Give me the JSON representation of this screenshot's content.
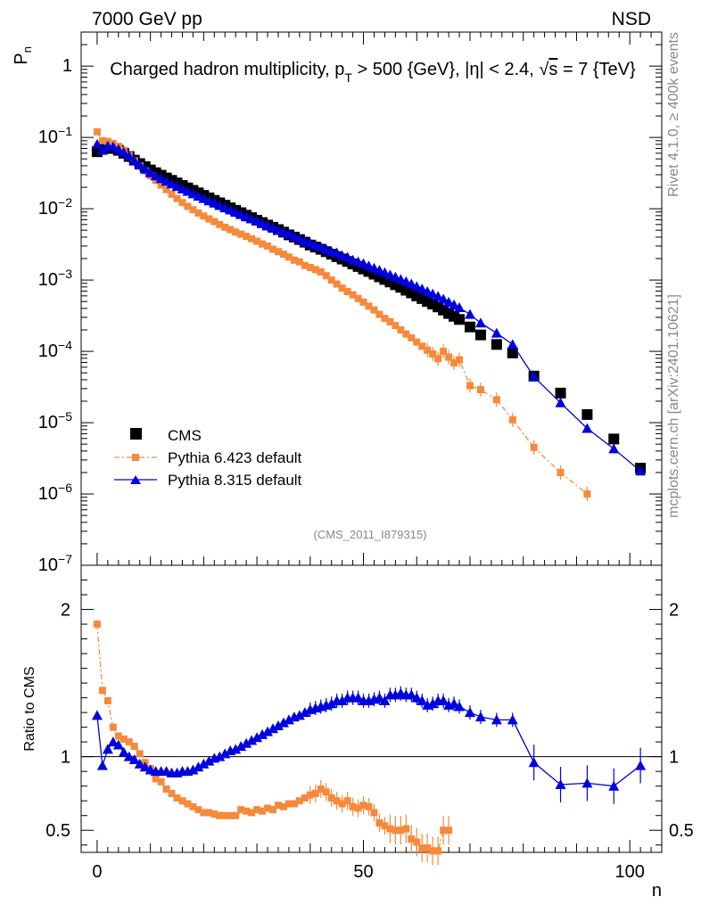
{
  "header": {
    "left": "7000 GeV pp",
    "right": "NSD"
  },
  "side_labels": {
    "rivet": "Rivet 4.1.0, ≥ 400k events",
    "mcplots": "mcplots.cern.ch [arXiv:2401.10621]"
  },
  "analysis_id": "(CMS_2011_I879315)",
  "colors": {
    "cms": "#000000",
    "py6": "#f7893b",
    "py8": "#0000e0"
  },
  "chart_data": [
    {
      "type": "scatter",
      "yscale": "log",
      "title": "Charged hadron multiplicity, p_T > 500 {GeV}, |η| < 2.4, √s = 7 {TeV}",
      "title_parts": {
        "a": "Charged hadron multiplicity, p",
        "sub": "T",
        "b": " > 500 {GeV}, |η| < 2.4, √",
        "c": "s",
        "d": " = 7 {TeV}"
      },
      "xlabel": "n",
      "ylabel": "P",
      "ylabel_sub": "n",
      "xlim": [
        -3,
        106
      ],
      "ylim": [
        1e-07,
        3
      ],
      "yticks": [
        {
          "value": 1,
          "label": "1",
          "exp": ""
        },
        {
          "value": 0.1,
          "label": "10",
          "exp": "−1"
        },
        {
          "value": 0.01,
          "label": "10",
          "exp": "−2"
        },
        {
          "value": 0.001,
          "label": "10",
          "exp": "−3"
        },
        {
          "value": 0.0001,
          "label": "10",
          "exp": "−4"
        },
        {
          "value": 1e-05,
          "label": "10",
          "exp": "−5"
        },
        {
          "value": 1e-06,
          "label": "10",
          "exp": "−6"
        },
        {
          "value": 1e-07,
          "label": "10",
          "exp": "−7"
        }
      ],
      "legend_position": "bottom-left",
      "series": [
        {
          "name": "CMS",
          "x": [
            0,
            1,
            2,
            3,
            4,
            5,
            6,
            7,
            8,
            9,
            10,
            11,
            12,
            13,
            14,
            15,
            16,
            17,
            18,
            19,
            20,
            21,
            22,
            23,
            24,
            25,
            26,
            27,
            28,
            29,
            30,
            31,
            32,
            33,
            34,
            35,
            36,
            37,
            38,
            39,
            40,
            41,
            42,
            43,
            44,
            45,
            46,
            47,
            48,
            49,
            50,
            51,
            52,
            53,
            54,
            55,
            56,
            57,
            58,
            59,
            60,
            61,
            62,
            63,
            64,
            65,
            66,
            67,
            68,
            70,
            72,
            75,
            78,
            82,
            87,
            92,
            97,
            102
          ],
          "y": [
            0.063,
            0.07,
            0.072,
            0.07,
            0.066,
            0.06,
            0.054,
            0.048,
            0.043,
            0.039,
            0.035,
            0.032,
            0.0295,
            0.027,
            0.025,
            0.023,
            0.0212,
            0.0196,
            0.0181,
            0.0167,
            0.0154,
            0.0142,
            0.0131,
            0.0121,
            0.0112,
            0.0103,
            0.0095,
            0.0088,
            0.0081,
            0.0075,
            0.0069,
            0.0064,
            0.0059,
            0.0055,
            0.0051,
            0.0047,
            0.0043,
            0.004,
            0.0037,
            0.0034,
            0.0031,
            0.0029,
            0.0027,
            0.0025,
            0.0023,
            0.00213,
            0.00197,
            0.00182,
            0.00168,
            0.00155,
            0.00143,
            0.00132,
            0.00121,
            0.00111,
            0.00102,
            0.00094,
            0.00086,
            0.00079,
            0.00072,
            0.00066,
            0.0006,
            0.00055,
            0.0005,
            0.00046,
            0.00042,
            0.00038,
            0.00034,
            0.00031,
            0.00028,
            0.00022,
            0.00017,
            0.000125,
            9.5e-05,
            4.5e-05,
            2.6e-05,
            1.3e-05,
            5.9e-06,
            2.3e-06
          ]
        },
        {
          "name": "Pythia 6.423 default",
          "x": [
            0,
            1,
            2,
            3,
            4,
            5,
            6,
            7,
            8,
            9,
            10,
            11,
            12,
            13,
            14,
            15,
            16,
            17,
            18,
            19,
            20,
            21,
            22,
            23,
            24,
            25,
            26,
            27,
            28,
            29,
            30,
            31,
            32,
            33,
            34,
            35,
            36,
            37,
            38,
            39,
            40,
            41,
            42,
            43,
            44,
            45,
            46,
            47,
            48,
            49,
            50,
            51,
            52,
            53,
            54,
            55,
            56,
            57,
            58,
            59,
            60,
            61,
            62,
            63,
            64,
            65,
            66,
            67,
            68,
            70,
            72,
            75,
            78,
            82,
            87,
            92
          ],
          "y": [
            0.12,
            0.09,
            0.088,
            0.082,
            0.075,
            0.066,
            0.056,
            0.047,
            0.04,
            0.034,
            0.029,
            0.025,
            0.0215,
            0.0185,
            0.016,
            0.0139,
            0.0122,
            0.0108,
            0.0097,
            0.0087,
            0.0079,
            0.0072,
            0.0066,
            0.006,
            0.0055,
            0.0051,
            0.0047,
            0.0044,
            0.0041,
            0.0038,
            0.0035,
            0.0032,
            0.003,
            0.0027,
            0.0025,
            0.0023,
            0.0021,
            0.0019,
            0.0018,
            0.0016,
            0.0015,
            0.0014,
            0.0013,
            0.00115,
            0.001,
            0.00088,
            0.00077,
            0.00069,
            0.00062,
            0.00055,
            0.00049,
            0.00043,
            0.00038,
            0.00033,
            0.00029,
            0.00026,
            0.00023,
            0.0002,
            0.000175,
            0.000155,
            0.000135,
            0.000118,
            0.000104,
            9.2e-05,
            7.9e-05,
            0.0001,
            8.3e-05,
            6.9e-05,
            7.6e-05,
            3.3e-05,
            2.9e-05,
            2.1e-05,
            1.1e-05,
            4.5e-06,
            2e-06,
            1e-06
          ]
        },
        {
          "name": "Pythia 8.315 default",
          "x": [
            0,
            1,
            2,
            3,
            4,
            5,
            6,
            7,
            8,
            9,
            10,
            11,
            12,
            13,
            14,
            15,
            16,
            17,
            18,
            19,
            20,
            21,
            22,
            23,
            24,
            25,
            26,
            27,
            28,
            29,
            30,
            31,
            32,
            33,
            34,
            35,
            36,
            37,
            38,
            39,
            40,
            41,
            42,
            43,
            44,
            45,
            46,
            47,
            48,
            49,
            50,
            51,
            52,
            53,
            54,
            55,
            56,
            57,
            58,
            59,
            60,
            61,
            62,
            63,
            64,
            65,
            66,
            67,
            68,
            70,
            72,
            75,
            78,
            82,
            87,
            92,
            97,
            102
          ],
          "y": [
            0.08,
            0.066,
            0.076,
            0.074,
            0.068,
            0.062,
            0.055,
            0.047,
            0.041,
            0.036,
            0.032,
            0.0289,
            0.0264,
            0.0242,
            0.0223,
            0.0205,
            0.019,
            0.0175,
            0.0162,
            0.015,
            0.0139,
            0.0129,
            0.012,
            0.0111,
            0.0103,
            0.0096,
            0.0089,
            0.0083,
            0.0077,
            0.0072,
            0.0067,
            0.0062,
            0.0058,
            0.0054,
            0.005,
            0.0047,
            0.0044,
            0.0041,
            0.0038,
            0.0035,
            0.0033,
            0.0031,
            0.0029,
            0.0027,
            0.0025,
            0.0024,
            0.0022,
            0.0021,
            0.0019,
            0.0018,
            0.0017,
            0.00158,
            0.00147,
            0.00137,
            0.00127,
            0.00118,
            0.0011,
            0.00102,
            0.00095,
            0.00088,
            0.00081,
            0.00075,
            0.00069,
            0.00064,
            0.00059,
            0.00054,
            0.00049,
            0.00045,
            0.00041,
            0.00033,
            0.00025,
            0.00018,
            0.000125,
            4.4e-05,
            1.9e-05,
            8.3e-06,
            4.3e-06,
            2.1e-06
          ]
        }
      ]
    },
    {
      "type": "scatter",
      "ylabel": "Ratio to CMS",
      "xlabel": "n",
      "xlim": [
        -3,
        106
      ],
      "ylim": [
        0.35,
        2.3
      ],
      "reference_line": 1,
      "yticks": [
        0.5,
        1,
        2
      ],
      "xticks": [
        0,
        50,
        100
      ],
      "series": [
        {
          "name": "Pythia 6.423 default",
          "x": [
            0,
            1,
            2,
            3,
            4,
            5,
            6,
            7,
            8,
            9,
            10,
            11,
            12,
            13,
            14,
            15,
            16,
            17,
            18,
            19,
            20,
            21,
            22,
            23,
            24,
            25,
            26,
            27,
            28,
            29,
            30,
            31,
            32,
            33,
            34,
            35,
            36,
            37,
            38,
            39,
            40,
            41,
            42,
            43,
            44,
            45,
            46,
            47,
            48,
            49,
            50,
            51,
            52,
            53,
            54,
            55,
            56,
            57,
            58,
            59,
            60,
            61,
            62,
            63,
            64,
            65,
            66
          ],
          "y": [
            1.9,
            1.45,
            1.38,
            1.2,
            1.14,
            1.12,
            1.1,
            1.07,
            1.02,
            0.96,
            0.92,
            0.85,
            0.83,
            0.78,
            0.75,
            0.72,
            0.7,
            0.68,
            0.66,
            0.64,
            0.62,
            0.62,
            0.61,
            0.6,
            0.6,
            0.6,
            0.6,
            0.64,
            0.63,
            0.62,
            0.64,
            0.63,
            0.65,
            0.64,
            0.67,
            0.66,
            0.68,
            0.68,
            0.7,
            0.72,
            0.74,
            0.75,
            0.78,
            0.76,
            0.72,
            0.7,
            0.68,
            0.7,
            0.66,
            0.65,
            0.67,
            0.66,
            0.62,
            0.55,
            0.53,
            0.51,
            0.5,
            0.5,
            0.51,
            0.44,
            0.42,
            0.38,
            0.38,
            0.36,
            0.36,
            0.5,
            0.5
          ]
        },
        {
          "name": "Pythia 8.315 default",
          "x": [
            0,
            1,
            2,
            3,
            4,
            5,
            6,
            7,
            8,
            9,
            10,
            11,
            12,
            13,
            14,
            15,
            16,
            17,
            18,
            19,
            20,
            21,
            22,
            23,
            24,
            25,
            26,
            27,
            28,
            29,
            30,
            31,
            32,
            33,
            34,
            35,
            36,
            37,
            38,
            39,
            40,
            41,
            42,
            43,
            44,
            45,
            46,
            47,
            48,
            49,
            50,
            51,
            52,
            53,
            54,
            55,
            56,
            57,
            58,
            59,
            60,
            61,
            62,
            63,
            64,
            65,
            66,
            67,
            68,
            70,
            72,
            75,
            78,
            82,
            87,
            92,
            97,
            102
          ],
          "y": [
            1.28,
            0.94,
            1.05,
            1.1,
            1.08,
            1.03,
            1.0,
            0.98,
            0.95,
            0.93,
            0.91,
            0.9,
            0.9,
            0.9,
            0.89,
            0.89,
            0.9,
            0.9,
            0.91,
            0.93,
            0.95,
            0.97,
            0.99,
            1.0,
            1.02,
            1.04,
            1.05,
            1.07,
            1.09,
            1.11,
            1.13,
            1.15,
            1.17,
            1.19,
            1.21,
            1.23,
            1.25,
            1.27,
            1.28,
            1.3,
            1.32,
            1.33,
            1.34,
            1.35,
            1.36,
            1.38,
            1.38,
            1.4,
            1.4,
            1.4,
            1.38,
            1.38,
            1.39,
            1.4,
            1.38,
            1.42,
            1.42,
            1.43,
            1.42,
            1.42,
            1.4,
            1.38,
            1.35,
            1.36,
            1.38,
            1.38,
            1.35,
            1.36,
            1.34,
            1.3,
            1.27,
            1.25,
            1.25,
            0.96,
            0.81,
            0.82,
            0.8,
            0.94
          ]
        }
      ]
    }
  ]
}
